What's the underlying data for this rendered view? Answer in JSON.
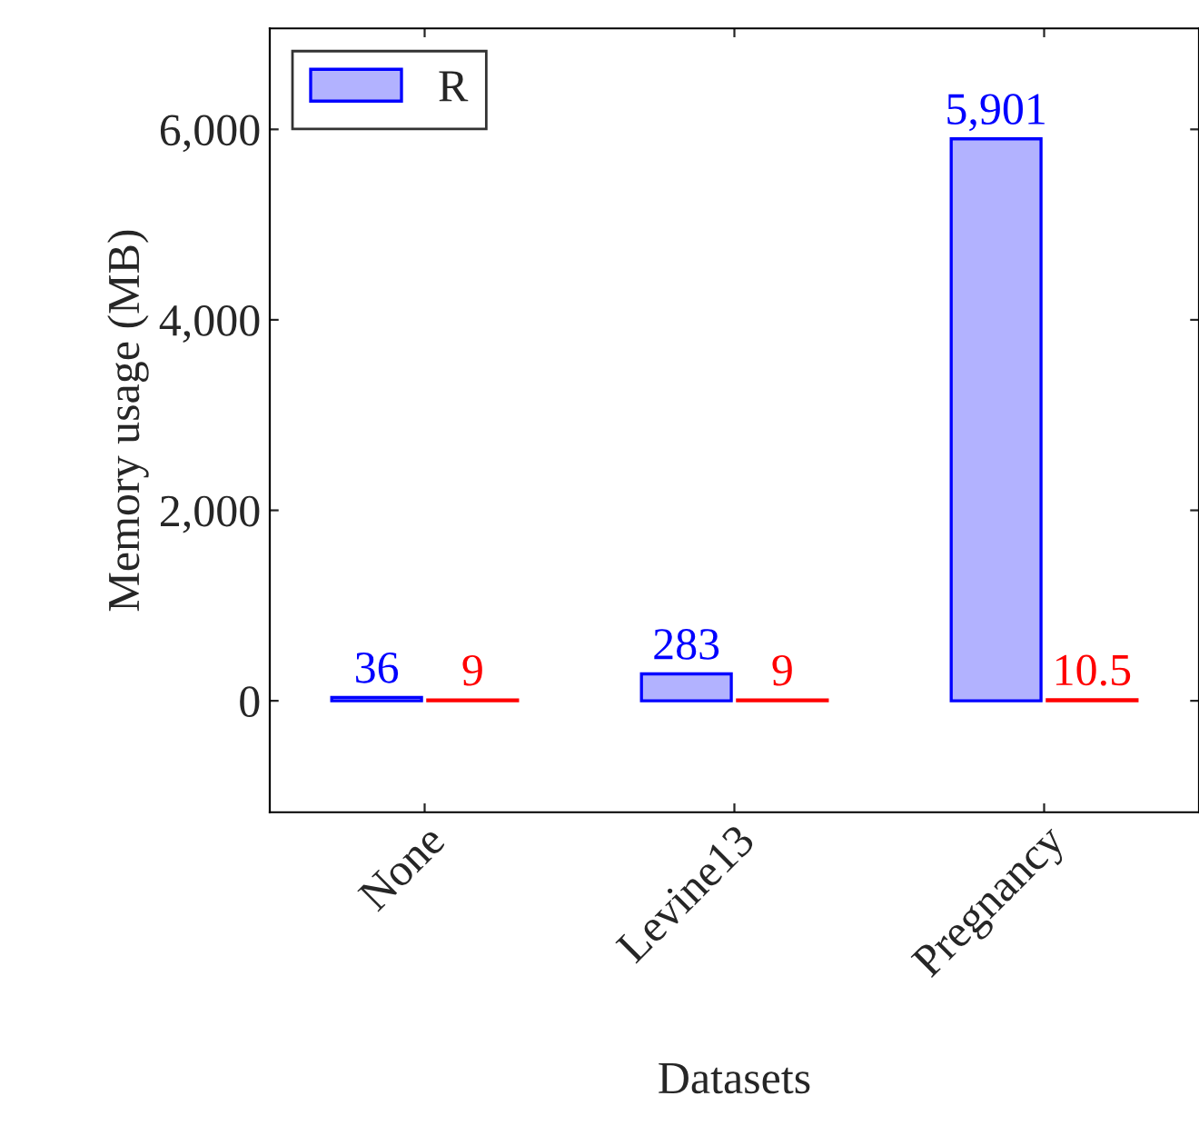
{
  "chart_data": {
    "type": "bar",
    "xlabel": "Datasets",
    "ylabel": "Memory usage (MB)",
    "categories": [
      "None",
      "Levine13",
      "Pregnancy"
    ],
    "series": [
      {
        "name": "R",
        "color": "#0000ff",
        "values": [
          36,
          283,
          5901
        ],
        "value_labels": [
          "36",
          "283",
          "5,901"
        ]
      },
      {
        "color": "#ff0000",
        "values": [
          9,
          9,
          10.5
        ],
        "value_labels": [
          "9",
          "9",
          "10.5"
        ]
      }
    ],
    "ylim": [
      -1170,
      7060
    ],
    "yticks": [
      {
        "value": 0,
        "label": "0"
      },
      {
        "value": 2000,
        "label": "2,000"
      },
      {
        "value": 4000,
        "label": "4,000"
      },
      {
        "value": 6000,
        "label": "6,000"
      }
    ],
    "legend": "top left",
    "grid": false
  }
}
